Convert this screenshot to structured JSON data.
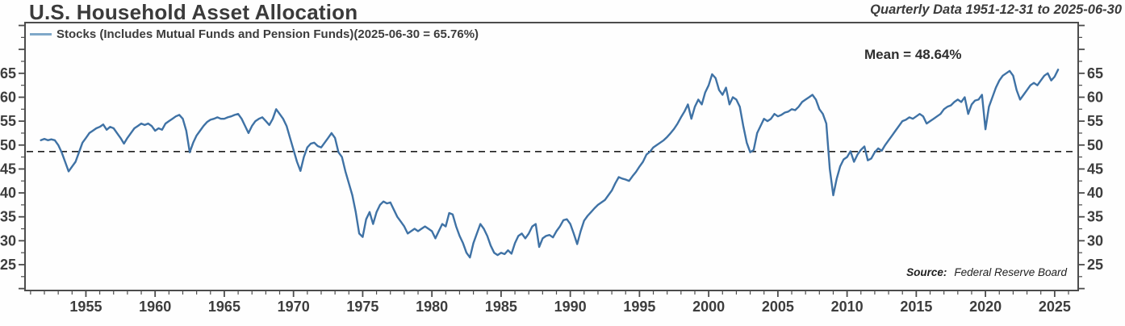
{
  "chart_data": {
    "type": "line",
    "title": "U.S. Household Asset Allocation",
    "subtitle": "Quarterly Data 1951-12-31 to 2025-06-30",
    "legend_label": "Stocks (Includes Mutual Funds and Pension Funds)(2025-06-30 = 65.76%)",
    "mean": {
      "label": "Mean = 48.64%",
      "value": 48.64
    },
    "final_value": 65.76,
    "final_date": "2025-06-30",
    "source": {
      "prefix": "Source:",
      "text": "Federal Reserve Board"
    },
    "colors": {
      "line": "#3f72a5",
      "legend_swatch": "#7fa8c9",
      "mean_line": "#1f1f1f",
      "axis": "#4c4c4c"
    },
    "x_axis": {
      "tick_labels": [
        1955,
        1960,
        1965,
        1970,
        1975,
        1980,
        1985,
        1990,
        1995,
        2000,
        2005,
        2010,
        2015,
        2020,
        2025
      ],
      "minor_step": 1,
      "range": [
        1950.6,
        2026.7
      ]
    },
    "y_axis": {
      "tick_labels": [
        25,
        30,
        35,
        40,
        45,
        50,
        55,
        60,
        65
      ],
      "minor_step": 2.5,
      "range": [
        19.6,
        75.6
      ],
      "grid": false
    },
    "series": [
      {
        "name": "Stocks (Includes Mutual Funds and Pension Funds)",
        "x_start": 1951.75,
        "x_step": 0.25,
        "x_end": 2025.25,
        "values": [
          51.0,
          51.3,
          51.0,
          51.2,
          51.0,
          50.0,
          48.5,
          46.5,
          44.5,
          45.5,
          46.5,
          48.5,
          50.5,
          51.5,
          52.5,
          53.0,
          53.5,
          53.8,
          54.3,
          53.2,
          53.8,
          53.5,
          52.5,
          51.5,
          50.3,
          51.5,
          52.5,
          53.5,
          54.0,
          54.5,
          54.2,
          54.5,
          54.0,
          53.0,
          53.5,
          53.2,
          54.5,
          55.0,
          55.5,
          56.0,
          56.3,
          55.5,
          53.0,
          48.5,
          50.5,
          52.0,
          53.0,
          54.0,
          54.8,
          55.3,
          55.5,
          55.8,
          55.5,
          55.5,
          55.8,
          56.0,
          56.3,
          56.5,
          55.5,
          54.0,
          52.5,
          54.0,
          55.0,
          55.5,
          55.8,
          55.0,
          54.2,
          55.5,
          57.5,
          56.5,
          55.5,
          54.0,
          51.5,
          49.0,
          46.5,
          44.6,
          47.5,
          49.5,
          50.3,
          50.5,
          49.8,
          49.5,
          50.5,
          51.5,
          52.5,
          51.5,
          48.5,
          47.5,
          44.5,
          42.0,
          39.5,
          36.0,
          31.5,
          30.8,
          34.5,
          36.0,
          33.5,
          36.0,
          37.5,
          38.2,
          37.8,
          38.0,
          36.5,
          35.0,
          34.0,
          33.0,
          31.5,
          32.0,
          32.5,
          32.0,
          32.5,
          33.0,
          32.5,
          32.0,
          30.5,
          32.0,
          33.5,
          33.0,
          35.8,
          35.5,
          33.0,
          31.0,
          29.5,
          27.5,
          26.5,
          29.5,
          31.5,
          33.5,
          32.5,
          31.0,
          29.0,
          27.5,
          27.0,
          27.5,
          27.2,
          28.0,
          27.3,
          29.5,
          31.0,
          31.5,
          30.5,
          31.5,
          33.0,
          33.5,
          28.7,
          30.5,
          31.0,
          31.2,
          30.7,
          32.0,
          33.0,
          34.3,
          34.5,
          33.5,
          31.5,
          29.3,
          32.0,
          34.2,
          35.2,
          36.0,
          36.8,
          37.5,
          38.0,
          38.5,
          39.5,
          40.5,
          42.0,
          43.3,
          43.0,
          42.8,
          42.5,
          43.5,
          44.4,
          45.5,
          46.5,
          48.0,
          48.6,
          49.5,
          50.0,
          50.5,
          51.0,
          51.7,
          52.5,
          53.4,
          54.5,
          55.8,
          57.0,
          58.5,
          55.5,
          58.0,
          59.5,
          58.5,
          61.0,
          62.5,
          64.8,
          64.0,
          61.5,
          60.5,
          62.0,
          58.5,
          60.0,
          59.5,
          58.0,
          54.0,
          50.5,
          48.5,
          49.0,
          52.5,
          54.0,
          55.5,
          55.0,
          55.5,
          56.5,
          56.0,
          56.3,
          56.8,
          57.0,
          57.5,
          57.3,
          58.0,
          59.0,
          59.5,
          60.0,
          60.5,
          59.5,
          57.5,
          56.5,
          54.5,
          45.0,
          39.5,
          43.0,
          45.5,
          47.0,
          47.5,
          48.7,
          46.5,
          48.0,
          49.0,
          49.7,
          46.8,
          47.2,
          48.5,
          49.3,
          48.8,
          50.0,
          51.0,
          52.0,
          53.0,
          54.0,
          55.0,
          55.3,
          55.8,
          55.5,
          56.0,
          56.5,
          56.0,
          54.5,
          55.0,
          55.5,
          56.0,
          56.5,
          57.5,
          58.0,
          58.3,
          59.0,
          59.5,
          59.0,
          60.0,
          56.5,
          58.5,
          59.3,
          59.5,
          60.5,
          53.3,
          58.0,
          60.0,
          62.0,
          63.5,
          64.5,
          65.0,
          65.5,
          64.5,
          61.5,
          59.5,
          60.5,
          61.5,
          62.5,
          63.0,
          62.5,
          63.5,
          64.5,
          65.0,
          63.5,
          64.3,
          65.76
        ]
      }
    ]
  }
}
